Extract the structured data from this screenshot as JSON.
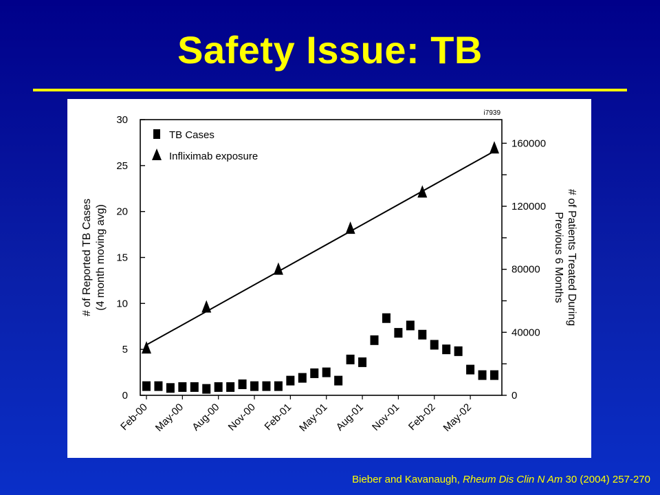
{
  "slide": {
    "title": "Safety Issue: TB",
    "citation_authors": "Bieber and Kavanaugh, ",
    "citation_journal": "Rheum Dis Clin N Am",
    "citation_details": " 30 (2004) 257-270"
  },
  "chart_data": {
    "type": "line",
    "figure_id": "i7939",
    "x_labels": [
      "Feb-00",
      "May-00",
      "Aug-00",
      "Nov-00",
      "Feb-01",
      "May-01",
      "Aug-01",
      "Nov-01",
      "Feb-02",
      "May-02"
    ],
    "ylabel_left": [
      "# of Reported TB Cases",
      "(4 month moving avg)"
    ],
    "ylabel_right": [
      "# of Patients Treated During",
      "Previous 6 Months"
    ],
    "ylim_left": [
      0,
      30
    ],
    "ylim_right": [
      0,
      175000
    ],
    "yticks_left": [
      "0",
      "5",
      "10",
      "15",
      "20",
      "25",
      "30"
    ],
    "yticks_right": [
      "0",
      "40000",
      "80000",
      "120000",
      "160000"
    ],
    "legend_placement": "top-left",
    "series": [
      {
        "name": "TB Cases",
        "marker": "square",
        "axis": "left",
        "x_index": [
          0,
          1,
          2,
          3,
          4,
          5,
          6,
          7,
          8,
          9,
          10,
          11,
          12,
          13,
          14,
          15,
          16,
          17,
          18,
          19,
          20,
          21,
          22,
          23,
          24,
          25,
          26,
          27,
          28,
          29
        ],
        "values": [
          1.0,
          1.0,
          0.8,
          0.9,
          0.9,
          0.7,
          0.9,
          0.9,
          1.2,
          1.0,
          1.0,
          1.0,
          1.6,
          1.9,
          2.4,
          2.5,
          1.6,
          3.9,
          3.6,
          6.0,
          8.4,
          6.8,
          7.6,
          6.6,
          5.5,
          5.0,
          4.8,
          2.8,
          2.2,
          2.2
        ]
      },
      {
        "name": "Infliximab exposure",
        "marker": "triangle",
        "axis": "right",
        "x_index": [
          0,
          5,
          11,
          17,
          23,
          29
        ],
        "values": [
          30000,
          56000,
          80000,
          106000,
          129000,
          157000
        ]
      }
    ],
    "trend_line": {
      "axis": "right",
      "x_index": [
        0,
        29
      ],
      "values": [
        32000,
        155000
      ]
    }
  }
}
